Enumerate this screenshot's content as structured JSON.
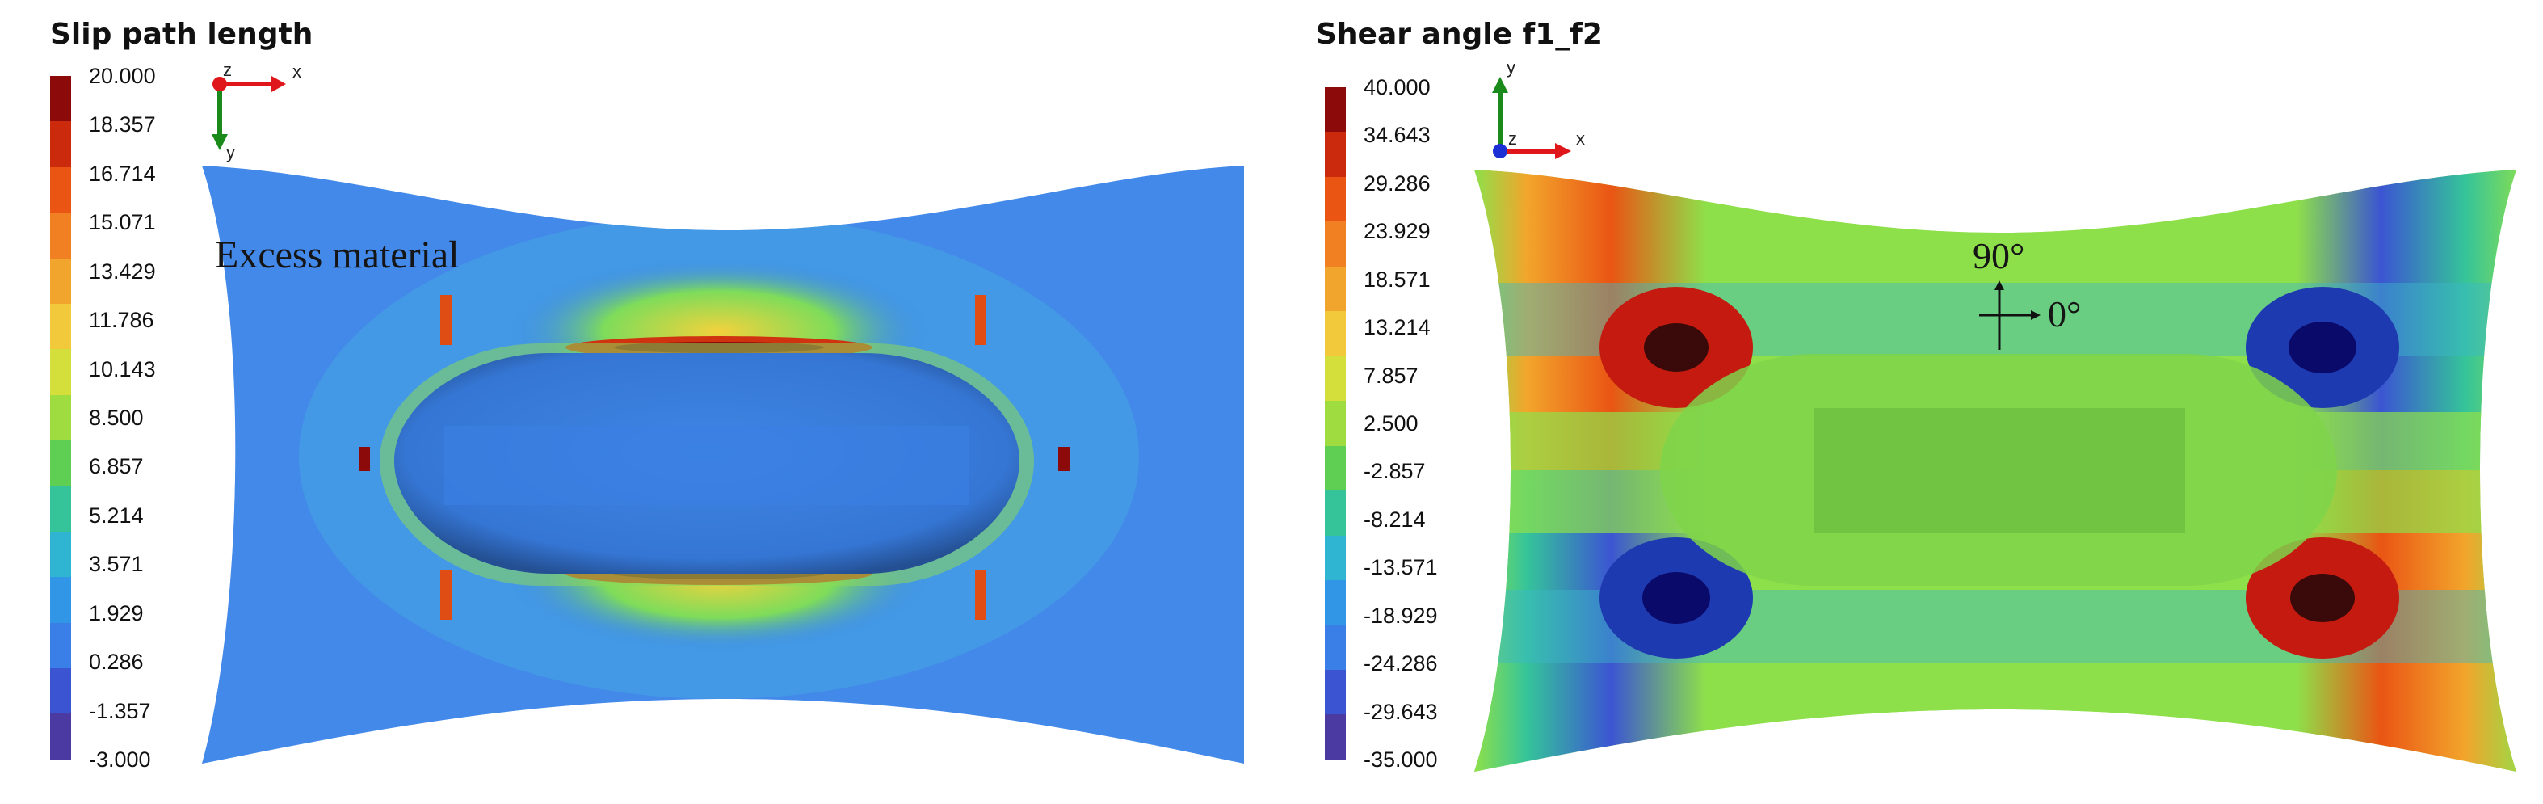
{
  "left_panel": {
    "title": "Slip path length",
    "legend_ticks": [
      "20.000",
      "18.357",
      "16.714",
      "15.071",
      "13.429",
      "11.786",
      "10.143",
      "8.500",
      "6.857",
      "5.214",
      "3.571",
      "1.929",
      "0.286",
      "-1.357",
      "-3.000"
    ],
    "legend_colors": [
      "#8c0a0a",
      "#cc2a0c",
      "#ea5514",
      "#f08022",
      "#f2a52c",
      "#f2c93a",
      "#d5df3c",
      "#9edc40",
      "#5fcf54",
      "#35c49a",
      "#2fb5d2",
      "#3196e6",
      "#3a7fe8",
      "#3b55d2",
      "#4a3aa2"
    ],
    "axis_labels": {
      "x": "x",
      "y": "y",
      "z": "z"
    },
    "annotation": "Excess material"
  },
  "right_panel": {
    "title": "Shear angle f1_f2",
    "legend_ticks": [
      "40.000",
      "34.643",
      "29.286",
      "23.929",
      "18.571",
      "13.214",
      "7.857",
      "2.500",
      "-2.857",
      "-8.214",
      "-13.571",
      "-18.929",
      "-24.286",
      "-29.643",
      "-35.000"
    ],
    "legend_colors": [
      "#8c0a0a",
      "#cc2a0c",
      "#ea5514",
      "#f08022",
      "#f2a52c",
      "#f2c93a",
      "#d5df3c",
      "#9edc40",
      "#5fcf54",
      "#35c49a",
      "#2fb5d2",
      "#3196e6",
      "#3a7fe8",
      "#3b55d2",
      "#4a3aa2"
    ],
    "axis_labels": {
      "x": "x",
      "y": "y",
      "z": "z"
    },
    "annotation_90": "90°",
    "annotation_0": "0°"
  }
}
